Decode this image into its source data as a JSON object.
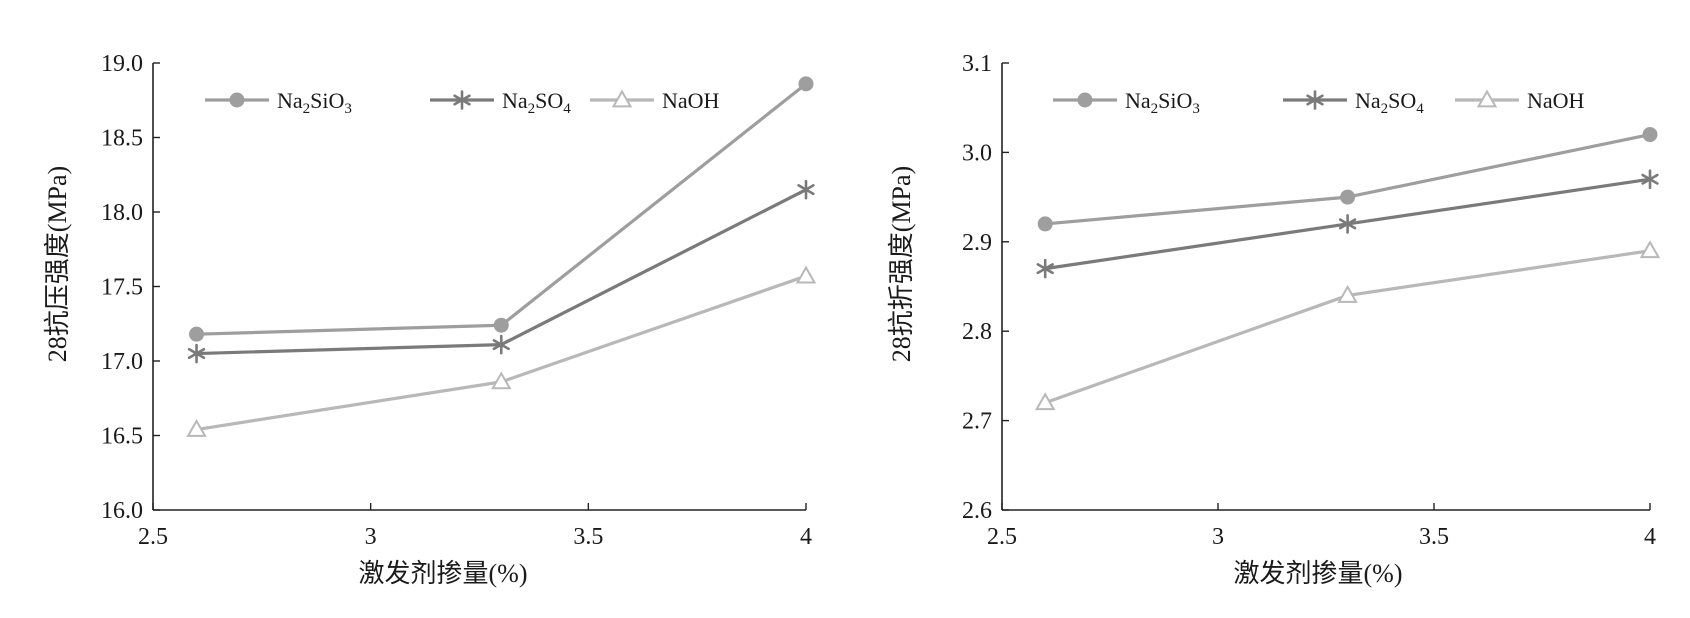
{
  "chart_data": [
    {
      "type": "line",
      "xlabel": "激发剂掺量(%)",
      "ylabel": "28抗压强度(MPa)",
      "xlim": [
        2.5,
        4
      ],
      "ylim": [
        16.0,
        19.0
      ],
      "xticks": [
        2.5,
        3,
        3.5,
        4
      ],
      "xtick_labels": [
        "2.5",
        "3",
        "3.5",
        "4"
      ],
      "yticks": [
        16.0,
        16.5,
        17.0,
        17.5,
        18.0,
        18.5,
        19.0
      ],
      "ytick_labels": [
        "16.0",
        "16.5",
        "17.0",
        "17.5",
        "18.0",
        "18.5",
        "19.0"
      ],
      "grid": false,
      "legend_position": "top",
      "x": [
        2.6,
        3.3,
        4.0
      ],
      "series": [
        {
          "name": "Na2SiO3",
          "label_main": "Na",
          "label_sub1": "2",
          "label_mid": "SiO",
          "label_sub2": "3",
          "values": [
            17.18,
            17.24,
            18.86
          ],
          "color": "#9e9e9e",
          "marker": "circle"
        },
        {
          "name": "Na2SO4",
          "label_main": "Na",
          "label_sub1": "2",
          "label_mid": "SO",
          "label_sub2": "4",
          "values": [
            17.05,
            17.11,
            18.15
          ],
          "color": "#7a7a7a",
          "marker": "asterisk"
        },
        {
          "name": "NaOH",
          "label_main": "NaOH",
          "label_sub1": "",
          "label_mid": "",
          "label_sub2": "",
          "values": [
            16.54,
            16.86,
            17.57
          ],
          "color": "#b8b8b8",
          "marker": "triangle"
        }
      ]
    },
    {
      "type": "line",
      "xlabel": "激发剂掺量(%)",
      "ylabel": "28抗折强度(MPa)",
      "xlim": [
        2.5,
        4
      ],
      "ylim": [
        2.6,
        3.1
      ],
      "xticks": [
        2.5,
        3,
        3.5,
        4
      ],
      "xtick_labels": [
        "2.5",
        "3",
        "3.5",
        "4"
      ],
      "yticks": [
        2.6,
        2.7,
        2.8,
        2.9,
        3.0,
        3.1
      ],
      "ytick_labels": [
        "2.6",
        "2.7",
        "2.8",
        "2.9",
        "3.0",
        "3.1"
      ],
      "grid": false,
      "legend_position": "top",
      "x": [
        2.6,
        3.3,
        4.0
      ],
      "series": [
        {
          "name": "Na2SiO3",
          "label_main": "Na",
          "label_sub1": "2",
          "label_mid": "SiO",
          "label_sub2": "3",
          "values": [
            2.92,
            2.95,
            3.02
          ],
          "color": "#9e9e9e",
          "marker": "circle"
        },
        {
          "name": "Na2SO4",
          "label_main": "Na",
          "label_sub1": "2",
          "label_mid": "SO",
          "label_sub2": "4",
          "values": [
            2.87,
            2.92,
            2.97
          ],
          "color": "#7a7a7a",
          "marker": "asterisk"
        },
        {
          "name": "NaOH",
          "label_main": "NaOH",
          "label_sub1": "",
          "label_mid": "",
          "label_sub2": "",
          "values": [
            2.72,
            2.84,
            2.89
          ],
          "color": "#b8b8b8",
          "marker": "triangle"
        }
      ]
    }
  ]
}
